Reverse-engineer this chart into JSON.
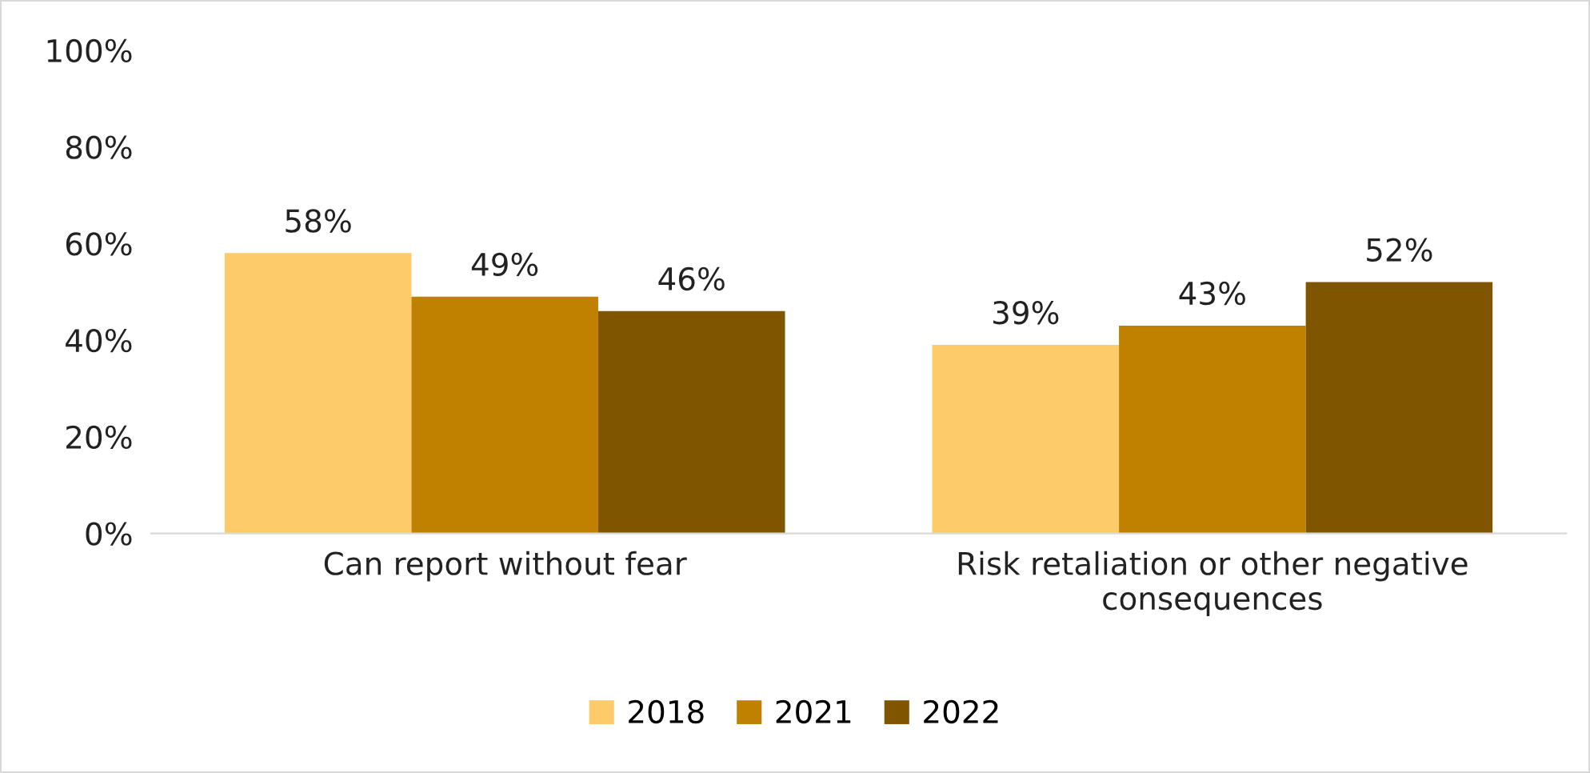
{
  "chart_data": {
    "type": "bar",
    "categories": [
      "Can report without fear",
      "Risk retaliation or other negative consequences"
    ],
    "series": [
      {
        "name": "2018",
        "color": "#fecb6a",
        "values": [
          58,
          39
        ],
        "value_labels": [
          "58%",
          "39%"
        ]
      },
      {
        "name": "2021",
        "color": "#c08000",
        "values": [
          49,
          43
        ],
        "value_labels": [
          "49%",
          "43%"
        ]
      },
      {
        "name": "2022",
        "color": "#805500",
        "values": [
          46,
          52
        ],
        "value_labels": [
          "46%",
          "52%"
        ]
      }
    ],
    "ylim": [
      0,
      100
    ],
    "yticks": [
      {
        "value": 0,
        "label": "0%"
      },
      {
        "value": 20,
        "label": "20%"
      },
      {
        "value": 40,
        "label": "40%"
      },
      {
        "value": 60,
        "label": "60%"
      },
      {
        "value": 80,
        "label": "80%"
      },
      {
        "value": 100,
        "label": "100%"
      }
    ],
    "grid": false,
    "legend": "bottom"
  }
}
